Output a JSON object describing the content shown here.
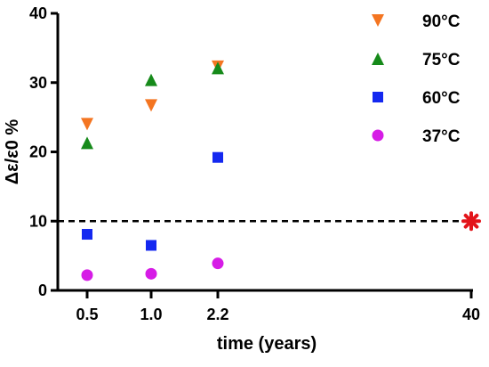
{
  "chart_data": {
    "type": "scatter",
    "xlabel": "time (years)",
    "ylabel": "Δε/ε0 %",
    "x_ticks": [
      "0.5",
      "1.0",
      "2.2",
      "40"
    ],
    "ylim": [
      0,
      40
    ],
    "y_ticks": [
      "0",
      "10",
      "20",
      "30",
      "40"
    ],
    "grid": false,
    "legend_position": "top-right",
    "series": [
      {
        "name": "90°C",
        "marker": "triangle-down",
        "color": "#F47521",
        "points": [
          {
            "x": "0.5",
            "y": 24.0
          },
          {
            "x": "1.0",
            "y": 26.7
          },
          {
            "x": "2.2",
            "y": 32.3
          }
        ]
      },
      {
        "name": "75°C",
        "marker": "triangle-up",
        "color": "#168A1A",
        "points": [
          {
            "x": "0.5",
            "y": 21.3
          },
          {
            "x": "1.0",
            "y": 30.4
          },
          {
            "x": "2.2",
            "y": 32.1
          }
        ]
      },
      {
        "name": "60°C",
        "marker": "square",
        "color": "#1428F0",
        "points": [
          {
            "x": "0.5",
            "y": 8.1
          },
          {
            "x": "1.0",
            "y": 6.5
          },
          {
            "x": "2.2",
            "y": 19.2
          }
        ]
      },
      {
        "name": "37°C",
        "marker": "circle",
        "color": "#D61CE6",
        "points": [
          {
            "x": "0.5",
            "y": 2.2
          },
          {
            "x": "1.0",
            "y": 2.4
          },
          {
            "x": "2.2",
            "y": 3.9
          }
        ]
      }
    ],
    "reference_line": {
      "y": 10,
      "style": "dashed",
      "color": "#000000"
    },
    "highlight_point": {
      "x": "40",
      "y": 10,
      "marker": "asterisk",
      "color": "#E3141A"
    }
  }
}
